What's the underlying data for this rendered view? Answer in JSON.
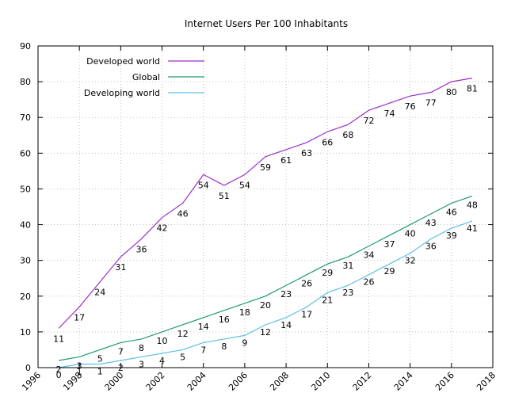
{
  "chart_data": {
    "type": "line",
    "title": "Internet Users Per 100 Inhabitants",
    "xlabel": "",
    "ylabel": "",
    "xlim": [
      1996,
      2018
    ],
    "ylim": [
      0,
      90
    ],
    "x_ticks": [
      "1996",
      "1998",
      "2000",
      "2002",
      "2004",
      "2006",
      "2008",
      "2010",
      "2012",
      "2014",
      "2016",
      "2018"
    ],
    "y_ticks": [
      "0",
      "10",
      "20",
      "30",
      "40",
      "50",
      "60",
      "70",
      "80",
      "90"
    ],
    "grid": true,
    "legend_position": "top-left",
    "x": [
      1997,
      1998,
      1999,
      2000,
      2001,
      2002,
      2003,
      2004,
      2005,
      2006,
      2007,
      2008,
      2009,
      2010,
      2011,
      2012,
      2013,
      2014,
      2015,
      2016,
      2017
    ],
    "series": [
      {
        "name": "Developed world",
        "color": "#9b30c8",
        "values": [
          11,
          17,
          24,
          31,
          36,
          42,
          46,
          54,
          51,
          54,
          59,
          61,
          63,
          66,
          68,
          72,
          74,
          76,
          77,
          80,
          81
        ],
        "labels": [
          "11",
          "17",
          "24",
          "31",
          "36",
          "42",
          "46",
          "54",
          "51",
          "54",
          "59",
          "61",
          "63",
          "66",
          "68",
          "72",
          "74",
          "76",
          "77",
          "80",
          "81"
        ]
      },
      {
        "name": "Global",
        "color": "#1f9b6e",
        "values": [
          2,
          3,
          5,
          7,
          8,
          10,
          12,
          14,
          16,
          18,
          20,
          23,
          26,
          29,
          31,
          34,
          37,
          40,
          43,
          46,
          48
        ],
        "labels": [
          "2",
          "3",
          "5",
          "7",
          "8",
          "10",
          "12",
          "14",
          "16",
          "18",
          "20",
          "23",
          "26",
          "29",
          "31",
          "34",
          "37",
          "40",
          "43",
          "46",
          "48"
        ]
      },
      {
        "name": "Developing world",
        "color": "#5cbfe6",
        "values": [
          0,
          1,
          1,
          2,
          3,
          4,
          5,
          7,
          8,
          9,
          12,
          14,
          17,
          21,
          23,
          26,
          29,
          32,
          36,
          39,
          41
        ],
        "labels": [
          "0",
          "1",
          "1",
          "2",
          "3",
          "4",
          "5",
          "7",
          "8",
          "9",
          "12",
          "14",
          "17",
          "21",
          "23",
          "26",
          "29",
          "32",
          "36",
          "39",
          "41"
        ]
      }
    ]
  }
}
